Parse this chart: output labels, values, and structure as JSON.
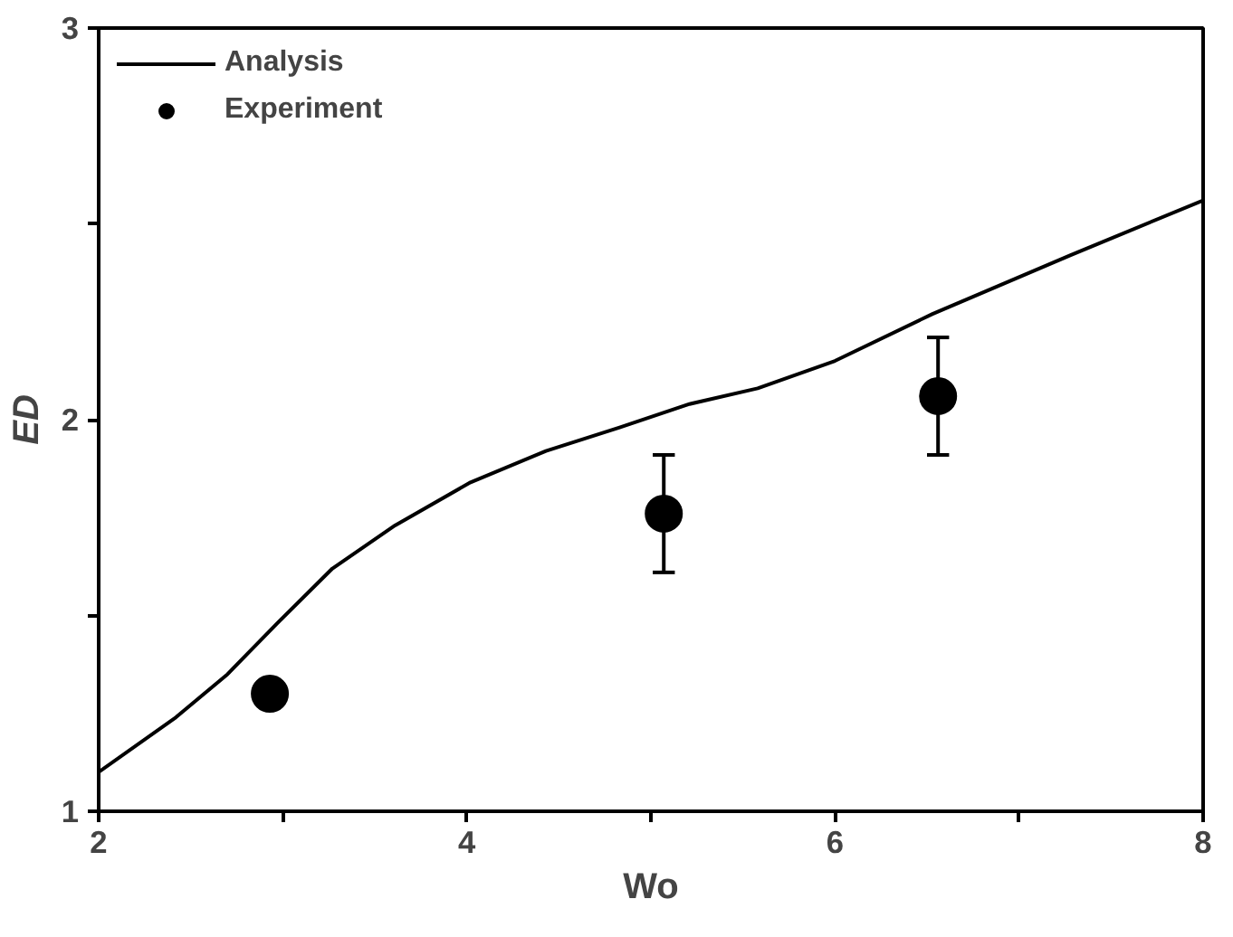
{
  "chart_data": {
    "type": "line",
    "xlabel": "Wo",
    "ylabel": "ED",
    "xlim": [
      2,
      8
    ],
    "ylim": [
      1,
      3
    ],
    "xticks": [
      2,
      {
        "value": 3,
        "label": null
      },
      4,
      {
        "value": 5,
        "label": null
      },
      6,
      {
        "value": 7,
        "label": null
      },
      8
    ],
    "yticks": [
      1,
      {
        "value": 1.5,
        "label": null
      },
      2,
      {
        "value": 2.5,
        "label": null
      },
      3
    ],
    "grid": false,
    "legend": "top left",
    "series": [
      {
        "name": "Analysis",
        "color": "#000000",
        "marker": "none",
        "line_style": "solid",
        "x": [
          2.0,
          2.42,
          2.7,
          2.97,
          3.27,
          3.61,
          4.02,
          4.43,
          4.83,
          5.21,
          5.58,
          6.0,
          6.53,
          7.28,
          8.0
        ],
        "values": [
          1.1,
          1.24,
          1.35,
          1.48,
          1.62,
          1.73,
          1.84,
          1.92,
          1.98,
          2.04,
          2.08,
          2.15,
          2.27,
          2.42,
          2.56
        ]
      },
      {
        "name": "Experiment",
        "type": "scatter",
        "color": "#000000",
        "marker": "circle",
        "x": [
          2.93,
          5.07,
          6.56
        ],
        "values": [
          1.3,
          1.76,
          2.06
        ],
        "errors": [
          null,
          0.15,
          0.15
        ]
      }
    ]
  }
}
